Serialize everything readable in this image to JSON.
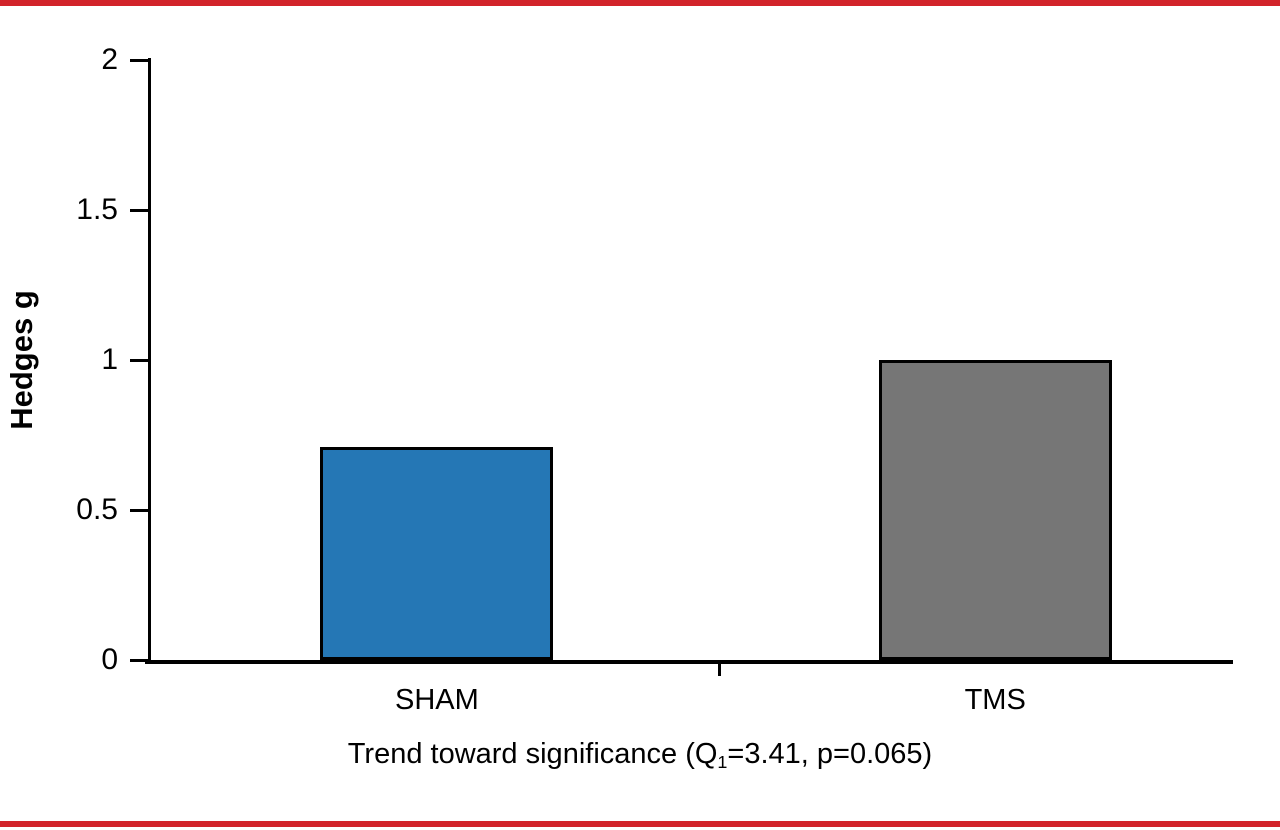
{
  "figure": {
    "accent_color": "#d2232a",
    "background": "#ffffff"
  },
  "chart_data": {
    "type": "bar",
    "categories": [
      "SHAM",
      "TMS"
    ],
    "values": [
      0.71,
      1.0
    ],
    "bar_colors": [
      "#2577b5",
      "#767676"
    ],
    "bar_border_color": "#000000",
    "title": "",
    "xlabel": "Trend toward significance (Q1=3.41, p=0.065)",
    "xlabel_parts": {
      "prefix": "Trend toward significance (Q",
      "sub": "1",
      "suffix": "=3.41, p=0.065)"
    },
    "ylabel": "Hedges g",
    "ylim": [
      0,
      2
    ],
    "y_ticks": [
      0,
      0.5,
      1,
      1.5,
      2
    ],
    "grid": false,
    "legend": "none"
  }
}
